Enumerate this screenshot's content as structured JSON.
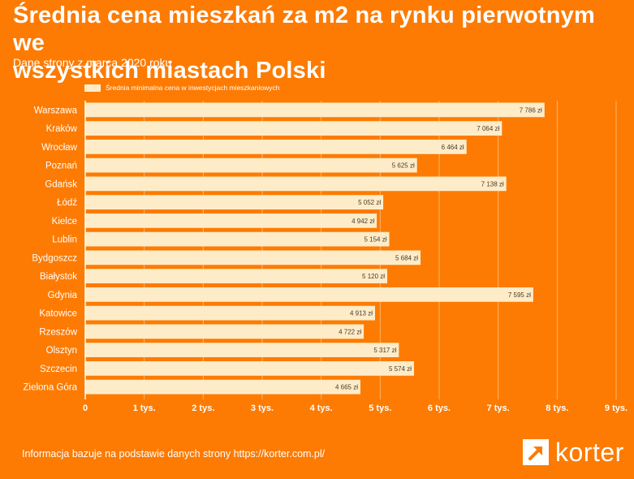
{
  "header": {
    "title_line1": "Średnia cena mieszkań za m2 na rynku pierwotnym we",
    "title_line2": "wszystkich miastach Polski",
    "subtitle": "Dane strony z marca 2020 roku"
  },
  "footer": {
    "source_text": "Informacja bazuje na podstawie danych strony https://korter.com.pl/",
    "logo_text": "korter",
    "logo_icon": "arrow-up-right-icon"
  },
  "colors": {
    "background": "#fd7b02",
    "bar": "#feecc8",
    "grid": "#fdb46a",
    "label_text": "#4a3a2a"
  },
  "chart_data": {
    "type": "bar",
    "orientation": "horizontal",
    "title": "Średnia cena mieszkań za m2 na rynku pierwotnym we wszystkich miastach Polski",
    "subtitle": "Dane strony z marca 2020 roku",
    "xlabel": "",
    "ylabel": "",
    "legend_position": "top-left",
    "grid": true,
    "xlim": [
      0,
      9000
    ],
    "x_ticks": [
      0,
      1000,
      2000,
      3000,
      4000,
      5000,
      6000,
      7000,
      8000,
      9000
    ],
    "x_tick_labels": [
      "0",
      "1 tys.",
      "2 tys.",
      "3 tys.",
      "4 tys.",
      "5 tys.",
      "6 tys.",
      "7 tys.",
      "8 tys.",
      "9 tys."
    ],
    "categories": [
      "Warszawa",
      "Kraków",
      "Wrocław",
      "Poznań",
      "Gdańsk",
      "Łódź",
      "Kielce",
      "Lublin",
      "Bydgoszcz",
      "Białystok",
      "Gdynia",
      "Katowice",
      "Rzeszów",
      "Olsztyn",
      "Szczecin",
      "Zielona Góra"
    ],
    "series": [
      {
        "name": "Średnia minimalna cena w inwestycjach mieszkaniowych",
        "values": [
          7786,
          7064,
          6464,
          5625,
          7138,
          5052,
          4942,
          5154,
          5684,
          5120,
          7595,
          4913,
          4722,
          5317,
          5574,
          4665
        ],
        "value_labels": [
          "7 786 zł",
          "7 064 zł",
          "6 464 zł",
          "5 625 zł",
          "7 138 zł",
          "5 052 zł",
          "4 942 zł",
          "5 154 zł",
          "5 684 zł",
          "5 120 zł",
          "7 595 zł",
          "4 913 zł",
          "4 722 zł",
          "5 317 zł",
          "5 574 zł",
          "4 665 zł"
        ]
      }
    ]
  }
}
